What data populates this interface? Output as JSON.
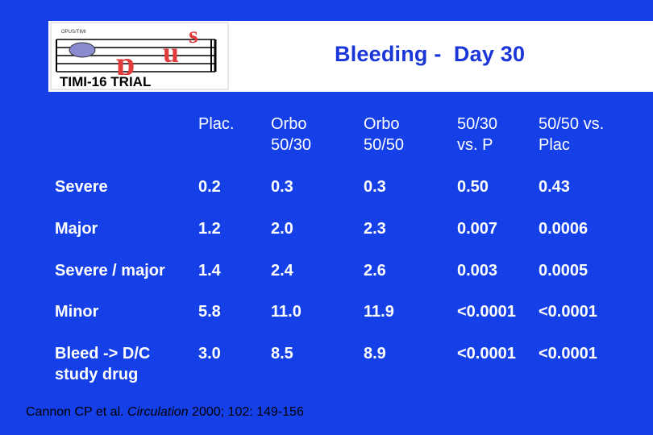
{
  "slide": {
    "title": "Bleeding -  Day 30",
    "logo": {
      "top_text": "OPUS/TIMI",
      "word": "opus",
      "subtitle": "TIMI-16 TRIAL"
    },
    "columns": [
      "Plac.",
      "Orbo\n50/30",
      "Orbo\n50/50",
      "50/30\nvs. P",
      "50/50 vs.\nPlac"
    ],
    "rows": [
      {
        "label": "Severe",
        "values": [
          "0.2",
          "0.3",
          "0.3",
          "0.50",
          "0.43"
        ]
      },
      {
        "label": "Major",
        "values": [
          "1.2",
          "2.0",
          "2.3",
          "0.007",
          "0.0006"
        ]
      },
      {
        "label": "Severe / major",
        "values": [
          "1.4",
          "2.4",
          "2.6",
          "0.003",
          "0.0005"
        ]
      },
      {
        "label": "Minor",
        "values": [
          "5.8",
          "11.0",
          "11.9",
          "<0.0001",
          "<0.0001"
        ]
      },
      {
        "label": "Bleed -> D/C\nstudy drug",
        "values": [
          "3.0",
          "8.5",
          "8.9",
          "<0.0001",
          "<0.0001"
        ]
      }
    ],
    "citation": {
      "authors": "Cannon CP et al. ",
      "journal": "Circulation",
      "details": " 2000; 102: 149-156"
    },
    "colors": {
      "background": "#1540e8",
      "title": "#1a36d8",
      "text": "#ffffff"
    }
  }
}
